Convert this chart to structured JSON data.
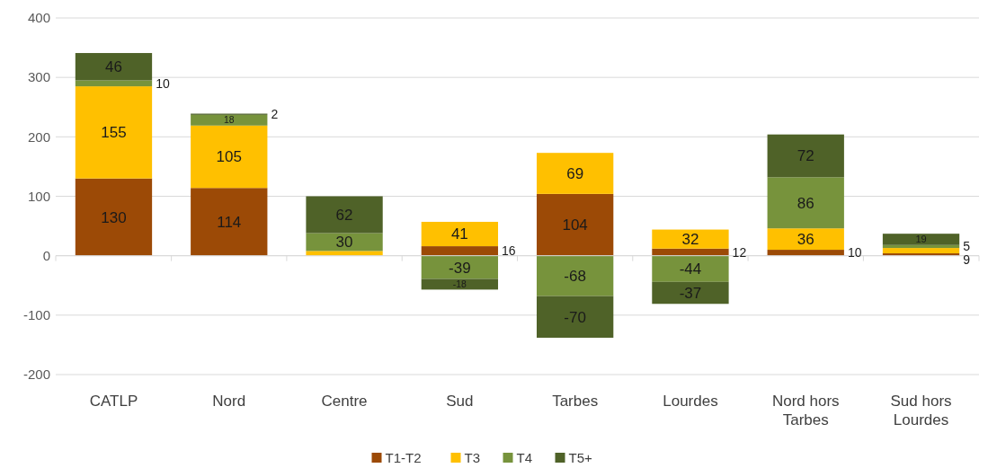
{
  "chart_data": {
    "type": "bar",
    "stacked": true,
    "categories": [
      "CATLP",
      "Nord",
      "Centre",
      "Sud",
      "Tarbes",
      "Lourdes",
      "Nord hors Tarbes",
      "Sud hors Lourdes"
    ],
    "series": [
      {
        "name": "T1-T2",
        "color": "#9c4a06",
        "values": [
          130,
          114,
          0,
          16,
          104,
          12,
          10,
          4
        ],
        "value_labels": [
          "130",
          "114",
          null,
          "16",
          "104",
          "12",
          "10",
          null
        ]
      },
      {
        "name": "T3",
        "color": "#ffc000",
        "values": [
          155,
          105,
          8,
          41,
          69,
          32,
          36,
          9
        ],
        "value_labels": [
          "155",
          "105",
          null,
          "41",
          "69",
          "32",
          "36",
          "9"
        ]
      },
      {
        "name": "T4",
        "color": "#77933c",
        "values": [
          10,
          18,
          30,
          -39,
          -68,
          -44,
          86,
          5
        ],
        "value_labels": [
          "10",
          "18",
          "30",
          "-39",
          "-68",
          "-44",
          "86",
          "5"
        ]
      },
      {
        "name": "T5+",
        "color": "#4f6228",
        "values": [
          46,
          2,
          62,
          -18,
          -70,
          -37,
          72,
          19
        ],
        "value_labels": [
          "46",
          "2",
          "62",
          "-18",
          "-70",
          "-37",
          "72",
          "19"
        ]
      }
    ],
    "ylim": [
      -200,
      400
    ],
    "yticks": [
      -200,
      -100,
      0,
      100,
      200,
      300,
      400
    ],
    "grid": "y",
    "legend": "bottom"
  }
}
